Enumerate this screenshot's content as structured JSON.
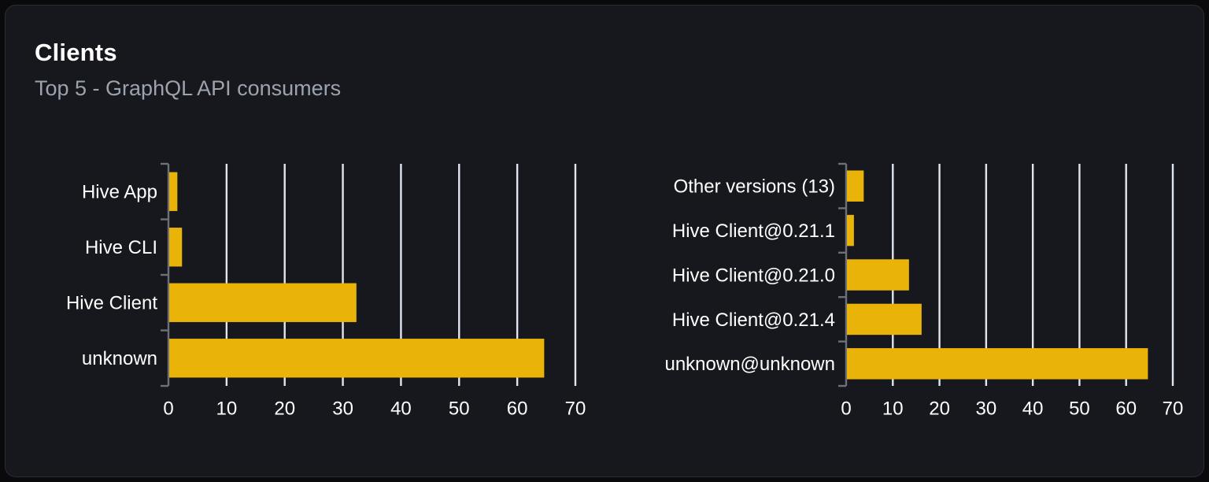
{
  "card": {
    "title": "Clients",
    "subtitle": "Top 5 - GraphQL API consumers"
  },
  "colors": {
    "page_bg": "#0A0A0C",
    "card_bg": "#16181D",
    "card_border": "#2B2D33",
    "bar": "#EAB308",
    "grid_line": "#E0E6F1",
    "axis_line": "#6E7079",
    "category_label": "#FFFFFF",
    "tick_label": "#FFFFFF",
    "title": "#FFFFFF",
    "subtitle": "#9CA3AF"
  },
  "chart_data": [
    {
      "type": "bar",
      "orientation": "horizontal",
      "name": "top-clients",
      "categories": [
        "Hive App",
        "Hive CLI",
        "Hive Client",
        "unknown"
      ],
      "values": [
        1.4,
        2.2,
        32.2,
        64.5
      ],
      "xlim": [
        0,
        70
      ],
      "x_ticks": [
        0,
        10,
        20,
        30,
        40,
        50,
        60,
        70
      ],
      "xlabel": "",
      "ylabel": "",
      "grid": true,
      "legend": false
    },
    {
      "type": "bar",
      "orientation": "horizontal",
      "name": "top-client-versions",
      "categories": [
        "Other versions (13)",
        "Hive Client@0.21.1",
        "Hive Client@0.21.0",
        "Hive Client@0.21.4",
        "unknown@unknown"
      ],
      "values": [
        3.6,
        1.5,
        13.3,
        16.0,
        64.5
      ],
      "xlim": [
        0,
        70
      ],
      "x_ticks": [
        0,
        10,
        20,
        30,
        40,
        50,
        60,
        70
      ],
      "xlabel": "",
      "ylabel": "",
      "grid": true,
      "legend": false
    }
  ]
}
